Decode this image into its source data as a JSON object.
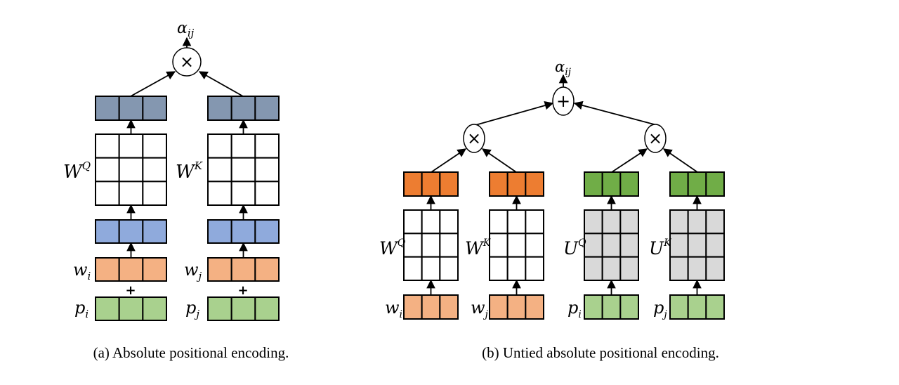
{
  "colors": {
    "projected": "#8497B0",
    "summed": "#8FAADC",
    "word": "#F4B183",
    "position": "#A9D18E",
    "word_projected": "#ED7D31",
    "position_projected": "#70AD47",
    "position_matrix": "#D9D9D9",
    "matrix": "#FFFFFF"
  },
  "panel_a": {
    "caption": "(a) Absolute positional encoding.",
    "output": {
      "base": "α",
      "sub": "ij"
    },
    "combine_op": "×",
    "add_op": "+",
    "columns": [
      {
        "matrix": {
          "base": "W",
          "sup": "Q"
        },
        "word": {
          "base": "w",
          "sub": "i"
        },
        "pos": {
          "base": "p",
          "sub": "i"
        }
      },
      {
        "matrix": {
          "base": "W",
          "sup": "K"
        },
        "word": {
          "base": "w",
          "sub": "j"
        },
        "pos": {
          "base": "p",
          "sub": "j"
        }
      }
    ]
  },
  "panel_b": {
    "caption": "(b) Untied absolute positional encoding.",
    "output": {
      "base": "α",
      "sub": "ij"
    },
    "sum_op": "+",
    "product_op": "×",
    "columns": [
      {
        "matrix": {
          "base": "W",
          "sup": "Q"
        },
        "input": {
          "base": "w",
          "sub": "i"
        }
      },
      {
        "matrix": {
          "base": "W",
          "sup": "K"
        },
        "input": {
          "base": "w",
          "sub": "j"
        }
      },
      {
        "matrix": {
          "base": "U",
          "sup": "Q"
        },
        "input": {
          "base": "p",
          "sub": "i"
        }
      },
      {
        "matrix": {
          "base": "U",
          "sup": "K"
        },
        "input": {
          "base": "p",
          "sub": "j"
        }
      }
    ]
  }
}
